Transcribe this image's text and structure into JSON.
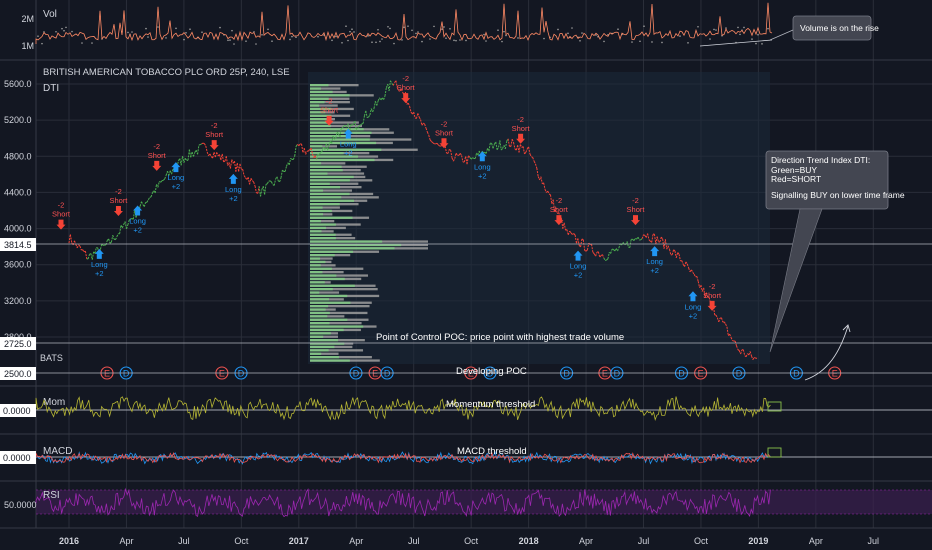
{
  "chart_data": {
    "type": "line",
    "title": "BRITISH AMERICAN TOBACCO PLC ORD 25P, 240, LSE",
    "exchange": "BATS",
    "price_axis": {
      "ticks": [
        "5600.0",
        "5200.0",
        "4800.0",
        "4400.0",
        "4000.0",
        "3600.0",
        "3200.0",
        "2800.0"
      ],
      "current_price_label": "3814.5",
      "poc_label": "2725.0",
      "bottom_label": "2500.0"
    },
    "x_axis": {
      "ticks": [
        "2016",
        "Apr",
        "Jul",
        "Oct",
        "2017",
        "Apr",
        "Jul",
        "Oct",
        "2018",
        "Apr",
        "Jul",
        "Oct",
        "2019",
        "Apr",
        "Jul"
      ]
    },
    "price_series": [
      {
        "t": "2016-01",
        "v": 3900
      },
      {
        "t": "2016-02",
        "v": 3680
      },
      {
        "t": "2016-03",
        "v": 3820
      },
      {
        "t": "2016-04",
        "v": 4050
      },
      {
        "t": "2016-05",
        "v": 4300
      },
      {
        "t": "2016-06",
        "v": 4550
      },
      {
        "t": "2016-07",
        "v": 4780
      },
      {
        "t": "2016-08",
        "v": 4900
      },
      {
        "t": "2016-09",
        "v": 4780
      },
      {
        "t": "2016-10",
        "v": 4650
      },
      {
        "t": "2016-11",
        "v": 4400
      },
      {
        "t": "2016-12",
        "v": 4550
      },
      {
        "t": "2017-01",
        "v": 4900
      },
      {
        "t": "2017-02",
        "v": 4800
      },
      {
        "t": "2017-03",
        "v": 5050
      },
      {
        "t": "2017-04",
        "v": 5150
      },
      {
        "t": "2017-05",
        "v": 5350
      },
      {
        "t": "2017-06",
        "v": 5650
      },
      {
        "t": "2017-07",
        "v": 5300
      },
      {
        "t": "2017-08",
        "v": 4950
      },
      {
        "t": "2017-09",
        "v": 4800
      },
      {
        "t": "2017-10",
        "v": 4750
      },
      {
        "t": "2017-11",
        "v": 4900
      },
      {
        "t": "2017-12",
        "v": 4950
      },
      {
        "t": "2018-01",
        "v": 4850
      },
      {
        "t": "2018-02",
        "v": 4400
      },
      {
        "t": "2018-03",
        "v": 3950
      },
      {
        "t": "2018-04",
        "v": 3800
      },
      {
        "t": "2018-05",
        "v": 3700
      },
      {
        "t": "2018-06",
        "v": 3800
      },
      {
        "t": "2018-07",
        "v": 3950
      },
      {
        "t": "2018-08",
        "v": 3850
      },
      {
        "t": "2018-09",
        "v": 3650
      },
      {
        "t": "2018-10",
        "v": 3350
      },
      {
        "t": "2018-11",
        "v": 3000
      },
      {
        "t": "2018-12",
        "v": 2650
      },
      {
        "t": "2019-01",
        "v": 2540
      }
    ],
    "signals": [
      {
        "t": "2016-01",
        "kind": "short",
        "label": "-2 Short"
      },
      {
        "t": "2016-03",
        "kind": "long",
        "label": "Long +2"
      },
      {
        "t": "2016-04",
        "kind": "short",
        "label": "-2 Short"
      },
      {
        "t": "2016-05",
        "kind": "long",
        "label": "Long +2"
      },
      {
        "t": "2016-06",
        "kind": "short",
        "label": "-2 Short"
      },
      {
        "t": "2016-07",
        "kind": "long",
        "label": "Long +2"
      },
      {
        "t": "2016-09",
        "kind": "short",
        "label": "-2 Short"
      },
      {
        "t": "2016-10",
        "kind": "long",
        "label": "Long +2"
      },
      {
        "t": "2017-03",
        "kind": "short",
        "label": "-2 Short"
      },
      {
        "t": "2017-04",
        "kind": "long",
        "label": "Long +2"
      },
      {
        "t": "2017-07",
        "kind": "short",
        "label": "-2 Short"
      },
      {
        "t": "2017-09",
        "kind": "short",
        "label": "-2 Short"
      },
      {
        "t": "2017-11",
        "kind": "long",
        "label": "Long +2"
      },
      {
        "t": "2018-01",
        "kind": "short",
        "label": "-2 Short"
      },
      {
        "t": "2018-03",
        "kind": "short",
        "label": "-2 Short"
      },
      {
        "t": "2018-04",
        "kind": "long",
        "label": "Long +2"
      },
      {
        "t": "2018-07",
        "kind": "short",
        "label": "-2 Short"
      },
      {
        "t": "2018-08",
        "kind": "long",
        "label": "Long +2"
      },
      {
        "t": "2018-10",
        "kind": "long",
        "label": "Long +2"
      },
      {
        "t": "2018-11",
        "kind": "short",
        "label": "-2 Short"
      }
    ],
    "event_markers": [
      {
        "t": "2016-01",
        "code": "E"
      },
      {
        "t": "2016-02",
        "code": "D"
      },
      {
        "t": "2016-07",
        "code": "E"
      },
      {
        "t": "2016-08",
        "code": "D"
      },
      {
        "t": "2017-02",
        "code": "D"
      },
      {
        "t": "2017-03",
        "code": "E"
      },
      {
        "t": "2017-03",
        "code": "D"
      },
      {
        "t": "2017-08",
        "code": "E"
      },
      {
        "t": "2017-09",
        "code": "D"
      },
      {
        "t": "2018-01",
        "code": "D"
      },
      {
        "t": "2018-03",
        "code": "E"
      },
      {
        "t": "2018-03",
        "code": "D"
      },
      {
        "t": "2018-07",
        "code": "D"
      },
      {
        "t": "2018-08",
        "code": "E"
      },
      {
        "t": "2018-10",
        "code": "D"
      },
      {
        "t": "2019-01",
        "code": "D"
      },
      {
        "t": "2019-03",
        "code": "E"
      }
    ],
    "panes": {
      "volume": {
        "label": "Vol",
        "ticks": [
          "1M",
          "2M"
        ]
      },
      "dti": {
        "label": "DTI"
      },
      "momentum": {
        "label": "Mom",
        "value": "0.0000"
      },
      "macd": {
        "label": "MACD",
        "value": "0.0000"
      },
      "rsi": {
        "label": "RSI",
        "value": "50.0000"
      }
    },
    "colors": {
      "up": "#26a69a",
      "down": "#ef5350",
      "bull_trend": "#4caf50",
      "bear_trend": "#f44336",
      "long": "#2196f3",
      "volume_line": "#ff8a65",
      "momentum": "#b5b534",
      "rsi": "#9c27b0",
      "profile_gray": "#9e9e9e",
      "profile_green": "#81c784",
      "background": "#131722"
    }
  },
  "annotations": {
    "volume_note": "Volume is on the rise",
    "dti_title": "Direction Trend Index DTI:",
    "dti_green": "Green=BUY",
    "dti_red": "Red=SHORT",
    "dti_signal": "Signalling BUY on lower time frame",
    "poc": "Point of Control POC: price point with highest trade volume",
    "developing_poc": "Developing POC",
    "momentum_threshold": "Momentum threshold",
    "macd_threshold": "MACD threshold"
  }
}
